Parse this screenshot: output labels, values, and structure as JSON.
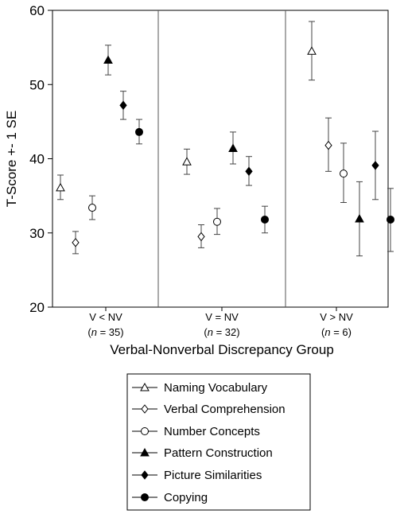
{
  "chart_data": {
    "type": "scatter",
    "ylabel": "T-Score +- 1 SE",
    "xlabel": "Verbal-Nonverbal Discrepancy Group",
    "ylim": [
      20,
      60
    ],
    "yticks": [
      "20",
      "30",
      "40",
      "50",
      "60"
    ],
    "grid": false,
    "legend_position": "bottom",
    "groups": [
      {
        "label": "V < NV",
        "n_prefix": "(",
        "n_var": "n",
        "n_suffix": " = 35)"
      },
      {
        "label": "V = NV",
        "n_prefix": "(",
        "n_var": "n",
        "n_suffix": " = 32)"
      },
      {
        "label": "V > NV",
        "n_prefix": "(",
        "n_var": "n",
        "n_suffix": " =  6)"
      }
    ],
    "series": [
      {
        "name": "Naming Vocabulary",
        "marker": "triangle-open",
        "values": [
          36.1,
          39.6,
          54.5
        ],
        "lower": [
          34.5,
          37.9,
          50.6
        ],
        "upper": [
          37.8,
          41.3,
          58.5
        ]
      },
      {
        "name": "Verbal Comprehension",
        "marker": "diamond-open",
        "values": [
          28.7,
          29.5,
          41.8
        ],
        "lower": [
          27.2,
          28.0,
          38.3
        ],
        "upper": [
          30.2,
          31.1,
          45.5
        ]
      },
      {
        "name": "Number Concepts",
        "marker": "circle-open",
        "values": [
          33.4,
          31.5,
          38.0
        ],
        "lower": [
          31.8,
          29.8,
          34.1
        ],
        "upper": [
          35.0,
          33.3,
          42.1
        ]
      },
      {
        "name": "Pattern Construction",
        "marker": "triangle-filled",
        "values": [
          53.3,
          41.4,
          31.9
        ],
        "lower": [
          51.3,
          39.3,
          26.9
        ],
        "upper": [
          55.3,
          43.6,
          36.9
        ]
      },
      {
        "name": "Picture Similarities",
        "marker": "diamond-filled",
        "values": [
          47.2,
          38.3,
          39.1
        ],
        "lower": [
          45.3,
          36.4,
          34.5
        ],
        "upper": [
          49.1,
          40.3,
          43.7
        ]
      },
      {
        "name": "Copying",
        "marker": "circle-filled",
        "values": [
          43.6,
          31.8,
          31.8
        ],
        "lower": [
          42.0,
          30.0,
          27.5
        ],
        "upper": [
          45.3,
          33.6,
          36.0
        ]
      }
    ]
  }
}
